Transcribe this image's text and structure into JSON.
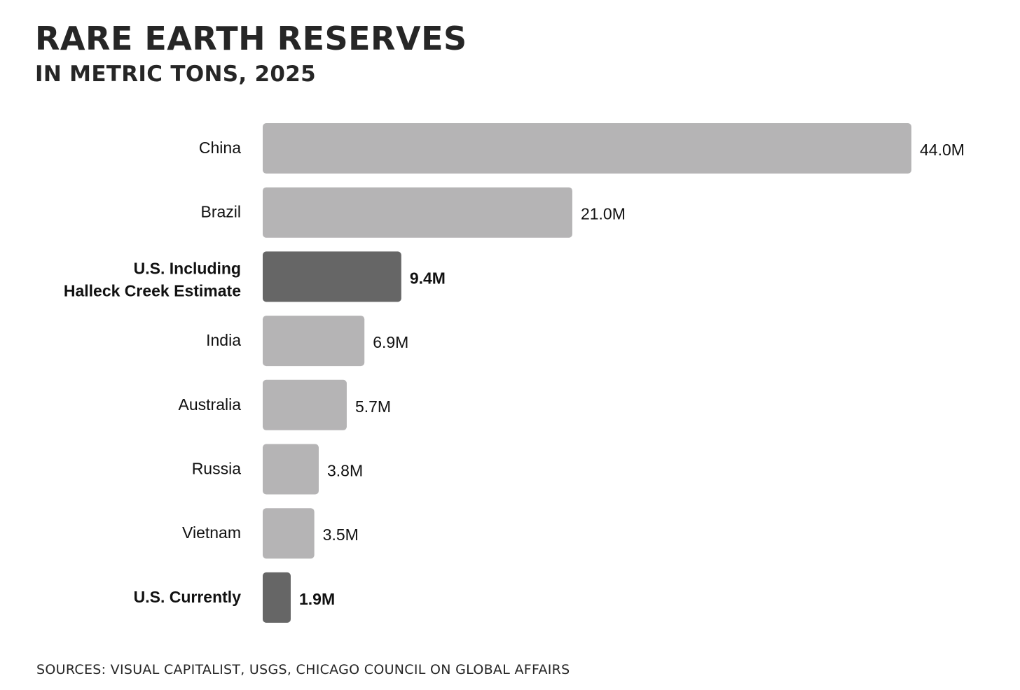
{
  "chart_data": {
    "type": "bar",
    "orientation": "horizontal",
    "title": "RARE EARTH RESERVES",
    "subtitle": "IN METRIC TONS, 2025",
    "categories": [
      "China",
      "Brazil",
      "U.S. Including Halleck Creek Estimate",
      "India",
      "Australia",
      "Russia",
      "Vietnam",
      "U.S. Currently"
    ],
    "category_lines": [
      [
        "China"
      ],
      [
        "Brazil"
      ],
      [
        "U.S. Including",
        "Halleck Creek Estimate"
      ],
      [
        "India"
      ],
      [
        "Australia"
      ],
      [
        "Russia"
      ],
      [
        "Vietnam"
      ],
      [
        "U.S. Currently"
      ]
    ],
    "values": [
      44.0,
      21.0,
      9.4,
      6.9,
      5.7,
      3.8,
      3.5,
      1.9
    ],
    "value_labels": [
      "44.0M",
      "21.0M",
      "9.4M",
      "6.9M",
      "5.7M",
      "3.8M",
      "3.5M",
      "1.9M"
    ],
    "highlighted": [
      false,
      false,
      true,
      false,
      false,
      false,
      false,
      true
    ],
    "xlim": [
      0,
      44.0
    ],
    "grid": false,
    "colors": {
      "default_bar": "#b5b4b5",
      "highlight_bar": "#666666"
    }
  },
  "source": "SOURCES: VISUAL CAPITALIST, USGS, CHICAGO COUNCIL ON GLOBAL AFFAIRS"
}
